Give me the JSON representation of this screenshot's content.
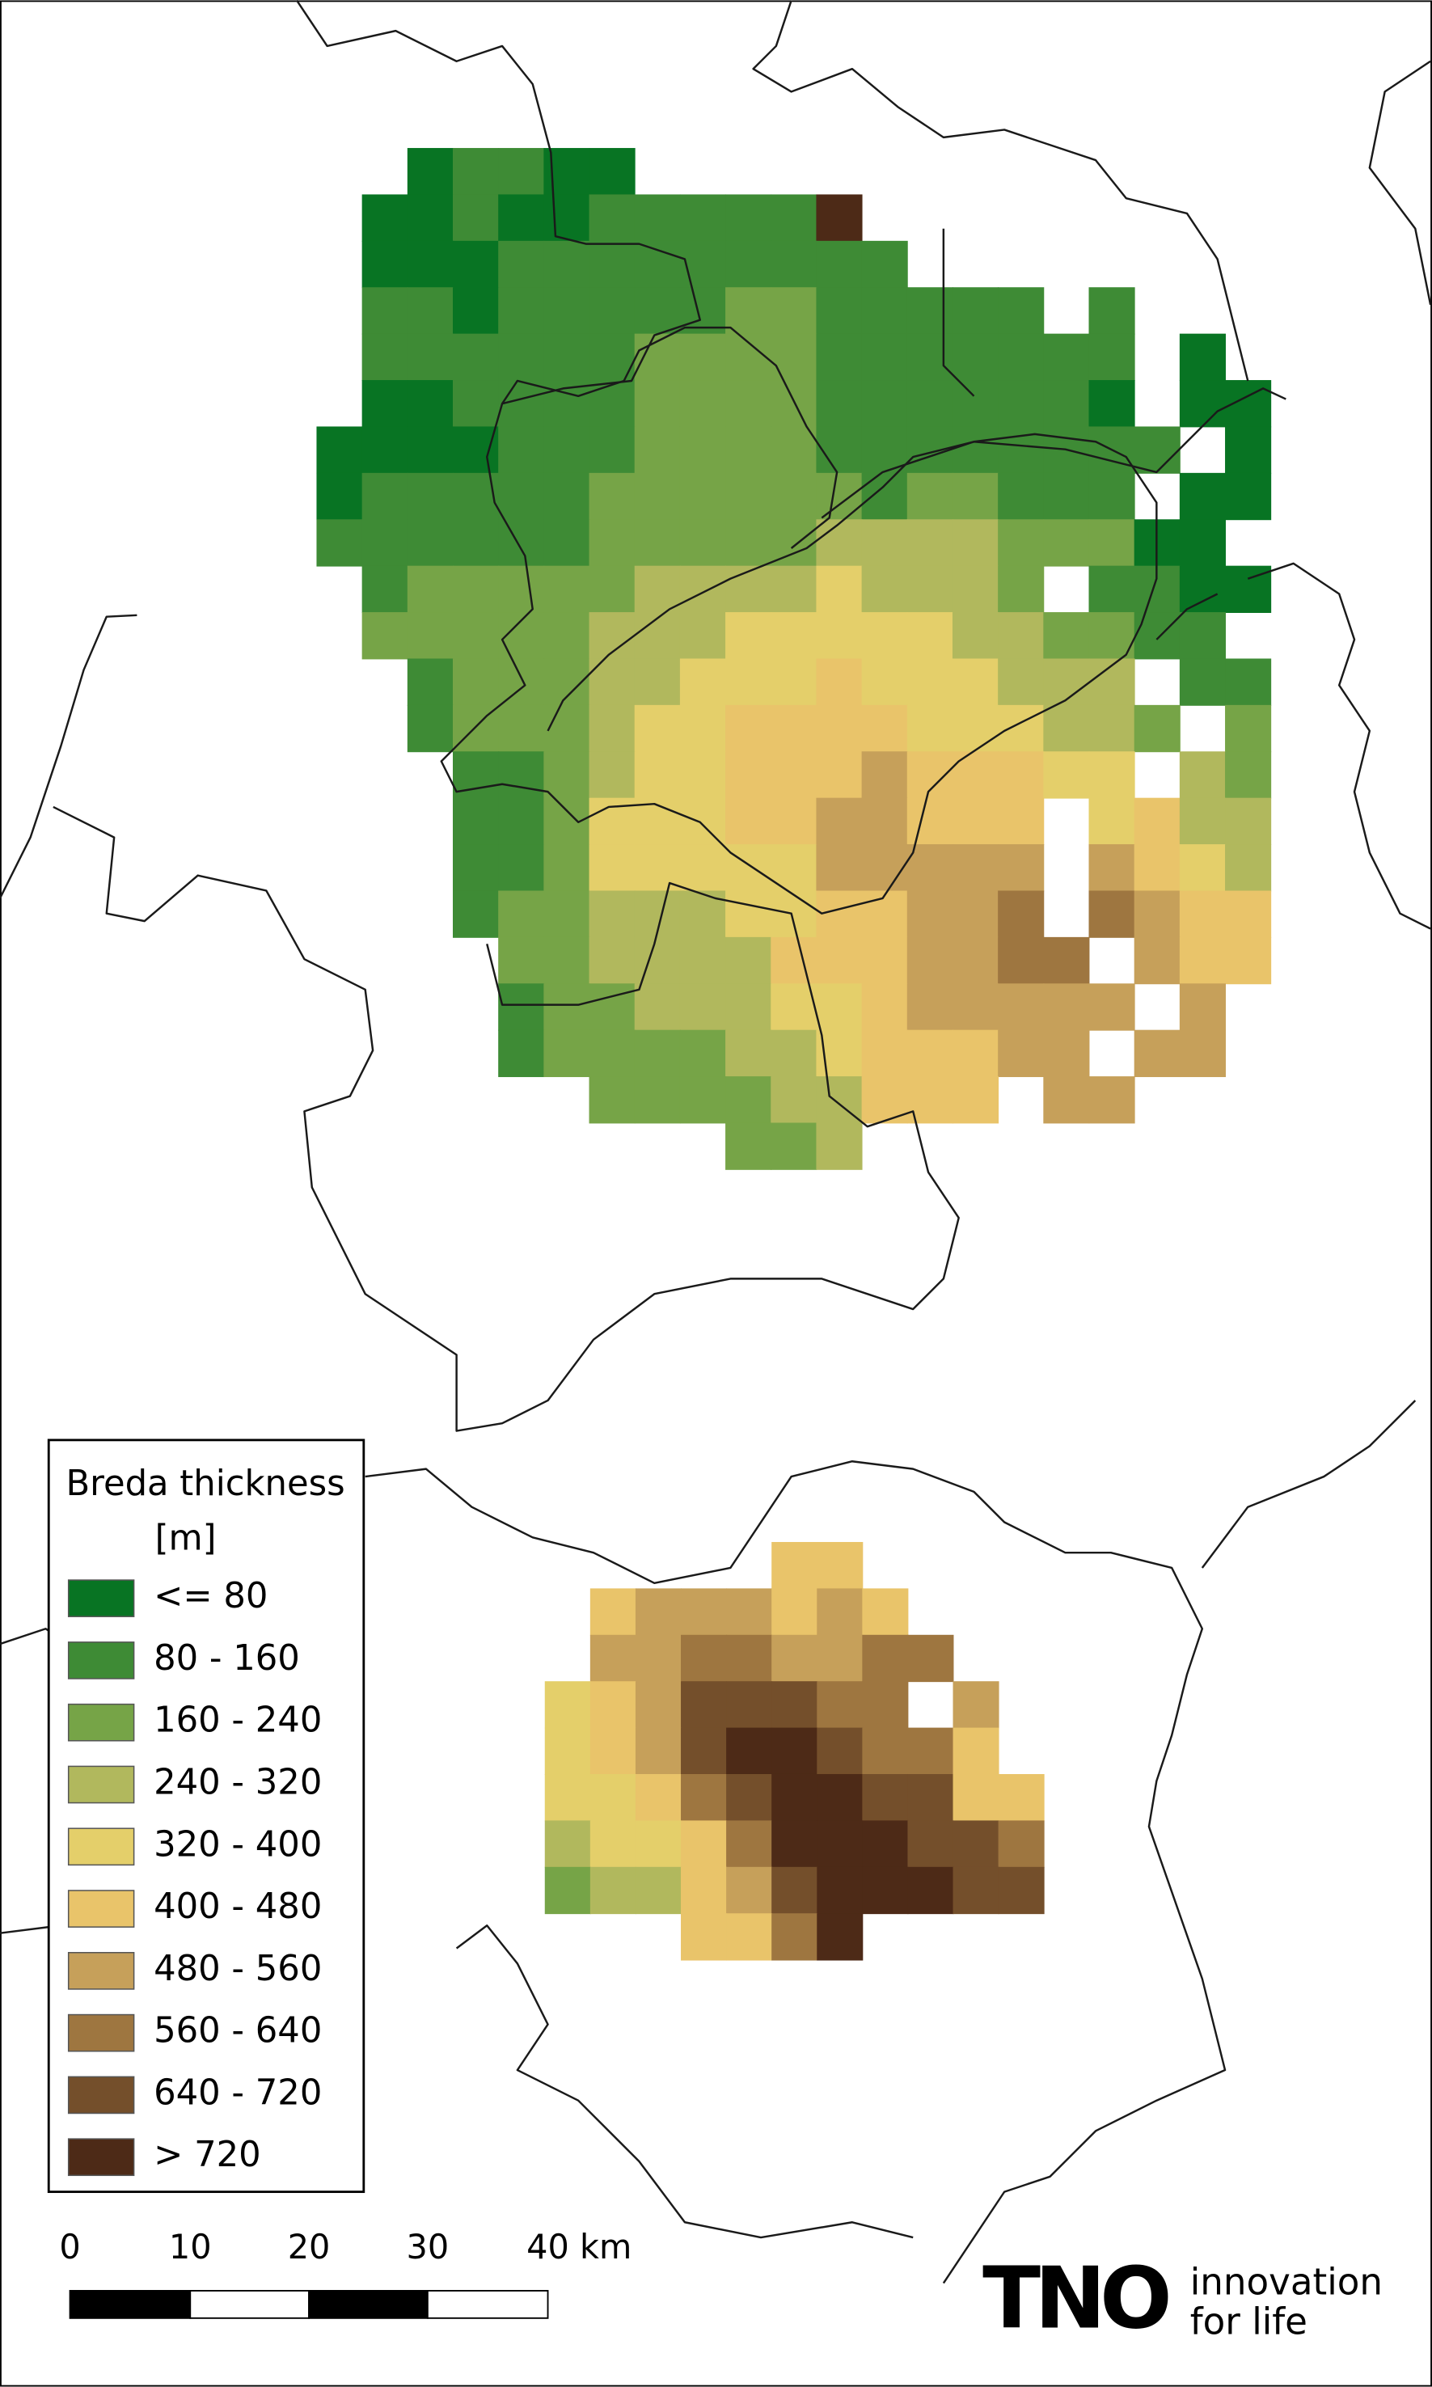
{
  "legend": {
    "title": "Breda thickness",
    "unit": "[m]",
    "items": [
      {
        "label": "<= 80",
        "color": "#087423"
      },
      {
        "label": "80 - 160",
        "color": "#3e8b35"
      },
      {
        "label": "160 - 240",
        "color": "#76a447"
      },
      {
        "label": "240 - 320",
        "color": "#b1b85d"
      },
      {
        "label": "320 - 400",
        "color": "#e4cf6a"
      },
      {
        "label": "400 - 480",
        "color": "#e9c46a"
      },
      {
        "label": "480 - 560",
        "color": "#c6a05a"
      },
      {
        "label": "560 - 640",
        "color": "#9e7640"
      },
      {
        "label": "640 - 720",
        "color": "#744f2b"
      },
      {
        "label": "> 720",
        "color": "#4d2a17"
      }
    ]
  },
  "raster": {
    "north": [
      "..01100..............",
      ".00100111119........",
      ".000111111111.......",
      ".110111112211111 1...",
      ".11111122221111111 0.",
      ".00111122221111110 00",
      "0000111222211111111 0",
      "011111222222122111 00",
      "11111122222333322200",
      ".122222333343332 1100",
      ".2222233344444332211",
      "..1222334445444333 11",
      "..12223445555444332 2",
      "...112344555655544 32",
      "...1124445566555 4533",
      "...1124444466666 6543",
      "...1223334455667 7655",
      "....2233335556677 655",
      "....12233344566666 6.",
      "....1222233455566 66.",
      "......222233555 66...",
      ".........223........"
    ],
    "south": [
      ".....55....",
      ".5666565...",
      ".66776677..",
      "45688877 6..",
      "4568998775.",
      "44578998855",
      "34457999887",
      "23356899988",
      "...5579...."
    ]
  },
  "scale_bar": {
    "labels": [
      "0",
      "10",
      "20",
      "30",
      "40 km"
    ]
  },
  "logo": {
    "mark": "TNO",
    "line1": "innovation",
    "line2": "for life"
  }
}
